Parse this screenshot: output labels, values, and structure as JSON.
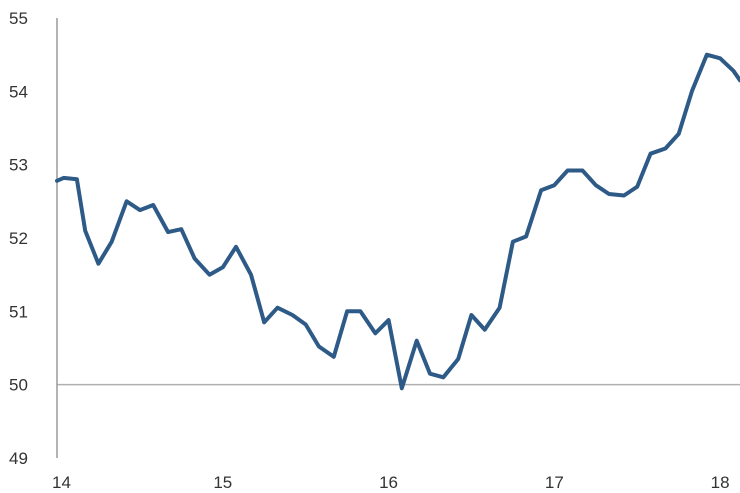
{
  "chart_data": {
    "type": "line",
    "title": "",
    "xlabel": "",
    "ylabel": "",
    "xlim": [
      14,
      18.12
    ],
    "ylim": [
      49,
      55
    ],
    "x_ticks": [
      14,
      15,
      16,
      17,
      18
    ],
    "x_tick_labels": [
      "14",
      "15",
      "16",
      "17",
      "18"
    ],
    "y_ticks": [
      49,
      50,
      51,
      52,
      53,
      54,
      55
    ],
    "y_tick_labels": [
      "49",
      "50",
      "51",
      "52",
      "53",
      "54",
      "55"
    ],
    "reference_line": 50,
    "grid": false,
    "colors": {
      "line": "#2e5a87",
      "axis": "#9a9a9a",
      "reference": "#b0b0b0",
      "text": "#333333"
    },
    "series": [
      {
        "x": [
          14.0,
          14.04,
          14.12,
          14.17,
          14.25,
          14.33,
          14.42,
          14.5,
          14.58,
          14.67,
          14.75,
          14.83,
          14.92,
          15.0,
          15.08,
          15.17,
          15.25,
          15.33,
          15.42,
          15.5,
          15.58,
          15.67,
          15.75,
          15.83,
          15.92,
          16.0,
          16.08,
          16.17,
          16.25,
          16.33,
          16.42,
          16.5,
          16.58,
          16.67,
          16.75,
          16.83,
          16.92,
          17.0,
          17.08,
          17.17,
          17.25,
          17.33,
          17.42,
          17.5,
          17.58,
          17.67,
          17.75,
          17.83,
          17.92,
          18.0,
          18.08,
          18.12
        ],
        "values": [
          52.78,
          52.82,
          52.8,
          52.1,
          51.65,
          51.95,
          52.5,
          52.38,
          52.45,
          52.08,
          52.12,
          51.72,
          51.5,
          51.6,
          51.88,
          51.5,
          50.85,
          51.05,
          50.95,
          50.82,
          50.52,
          50.38,
          51.0,
          51.0,
          50.7,
          50.88,
          49.95,
          50.6,
          50.15,
          50.1,
          50.35,
          50.95,
          50.75,
          51.05,
          51.95,
          52.02,
          52.65,
          52.72,
          52.92,
          52.92,
          52.72,
          52.6,
          52.58,
          52.7,
          53.15,
          53.22,
          53.42,
          54.0,
          54.5,
          54.45,
          54.28,
          54.15
        ]
      }
    ]
  }
}
